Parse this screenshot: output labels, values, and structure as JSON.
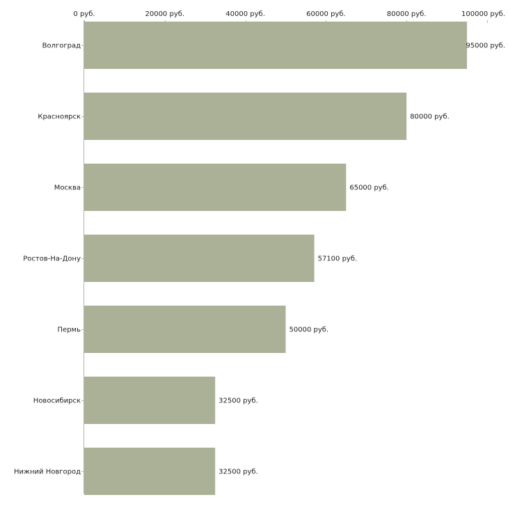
{
  "chart_data": {
    "type": "bar",
    "orientation": "horizontal",
    "categories": [
      "Волгоград",
      "Красноярск",
      "Москва",
      "Ростов-На-Дону",
      "Пермь",
      "Новосибирск",
      "Нижний Новгород"
    ],
    "values": [
      95000,
      80000,
      65000,
      57100,
      50000,
      32500,
      32500
    ],
    "value_labels": [
      "95000 руб.",
      "80000 руб.",
      "65000 руб.",
      "57100 руб.",
      "50000 руб.",
      "32500 руб.",
      "32500 руб."
    ],
    "x_ticks": [
      0,
      20000,
      40000,
      60000,
      80000,
      100000
    ],
    "x_tick_labels": [
      "0 руб.",
      "20000 руб.",
      "40000 руб.",
      "60000 руб.",
      "80000 руб.",
      "100000 руб."
    ],
    "xlim": [
      0,
      100000
    ],
    "axis_position": "top",
    "title": "",
    "xlabel": "",
    "ylabel": "",
    "grid": false,
    "legend": "none"
  },
  "colors": {
    "bar": "#abb197",
    "axis": "#b3b3b3",
    "text": "#222222"
  }
}
